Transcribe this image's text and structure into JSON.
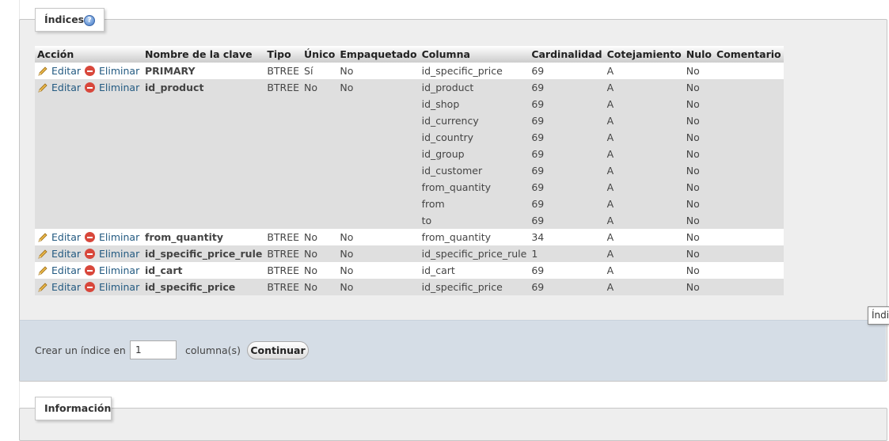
{
  "indexes_section": {
    "legend": "Índices",
    "columns_header": [
      "Acción",
      "Nombre de la clave",
      "Tipo",
      "Único",
      "Empaquetado",
      "Columna",
      "Cardinalidad",
      "Cotejamiento",
      "Nulo",
      "Comentario"
    ],
    "edit_label": "Editar",
    "delete_label": "Eliminar",
    "rows": [
      {
        "key": "PRIMARY",
        "type": "BTREE",
        "unique": "Sí",
        "packed": "No",
        "columns": [
          {
            "name": "id_specific_price",
            "card": "69",
            "coll": "A",
            "null": "No"
          }
        ]
      },
      {
        "key": "id_product",
        "type": "BTREE",
        "unique": "No",
        "packed": "No",
        "columns": [
          {
            "name": "id_product",
            "card": "69",
            "coll": "A",
            "null": "No"
          },
          {
            "name": "id_shop",
            "card": "69",
            "coll": "A",
            "null": "No"
          },
          {
            "name": "id_currency",
            "card": "69",
            "coll": "A",
            "null": "No"
          },
          {
            "name": "id_country",
            "card": "69",
            "coll": "A",
            "null": "No"
          },
          {
            "name": "id_group",
            "card": "69",
            "coll": "A",
            "null": "No"
          },
          {
            "name": "id_customer",
            "card": "69",
            "coll": "A",
            "null": "No"
          },
          {
            "name": "from_quantity",
            "card": "69",
            "coll": "A",
            "null": "No"
          },
          {
            "name": "from",
            "card": "69",
            "coll": "A",
            "null": "No"
          },
          {
            "name": "to",
            "card": "69",
            "coll": "A",
            "null": "No"
          }
        ]
      },
      {
        "key": "from_quantity",
        "type": "BTREE",
        "unique": "No",
        "packed": "No",
        "columns": [
          {
            "name": "from_quantity",
            "card": "34",
            "coll": "A",
            "null": "No"
          }
        ]
      },
      {
        "key": "id_specific_price_rule",
        "type": "BTREE",
        "unique": "No",
        "packed": "No",
        "columns": [
          {
            "name": "id_specific_price_rule",
            "card": "1",
            "coll": "A",
            "null": "No"
          }
        ]
      },
      {
        "key": "id_cart",
        "type": "BTREE",
        "unique": "No",
        "packed": "No",
        "columns": [
          {
            "name": "id_cart",
            "card": "69",
            "coll": "A",
            "null": "No"
          }
        ]
      },
      {
        "key": "id_specific_price",
        "type": "BTREE",
        "unique": "No",
        "packed": "No",
        "columns": [
          {
            "name": "id_specific_price",
            "card": "69",
            "coll": "A",
            "null": "No"
          }
        ]
      }
    ]
  },
  "create_index": {
    "label": "Crear un índice en",
    "value": "1",
    "columns_label": "columna(s)",
    "button": "Continuar"
  },
  "tooltip": "Índi",
  "info_section": {
    "legend": "Información"
  }
}
